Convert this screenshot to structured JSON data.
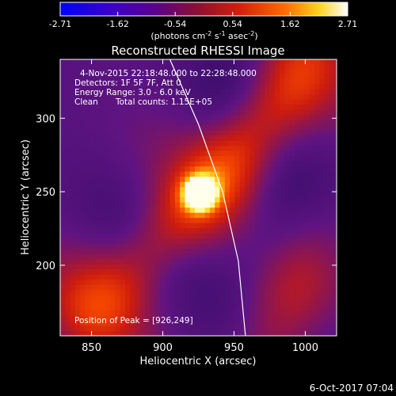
{
  "colorbar": {
    "ticks": [
      "-2.71",
      "-1.62",
      "-0.54",
      "0.54",
      "1.62",
      "2.71"
    ],
    "units_prefix": "(photons cm",
    "units_exp1": "-2",
    "units_mid": " s",
    "units_exp2": "-1",
    "units_mid2": " asec",
    "units_exp3": "-2",
    "units_suffix": ")",
    "range": [
      -2.71,
      2.71
    ]
  },
  "chart_data": {
    "type": "heatmap",
    "title": "Reconstructed RHESSI Image",
    "xlabel": "Heliocentric X (arcsec)",
    "ylabel": "Heliocentric Y (arcsec)",
    "x_ticks": [
      "850",
      "900",
      "950",
      "1000"
    ],
    "y_ticks": [
      "200",
      "250",
      "300"
    ],
    "xlim": [
      828,
      1022
    ],
    "ylim": [
      152,
      340
    ],
    "peak": [
      926,
      249
    ],
    "limb_curve": [
      [
        905,
        340
      ],
      [
        925,
        296
      ],
      [
        942,
        250
      ],
      [
        953,
        203
      ],
      [
        958,
        152
      ]
    ],
    "annotations": {
      "time_range": "4-Nov-2015 22:18:48.000 to 22:28:48.000",
      "detectors": "Detectors: 1F 5F 7F, Att 0",
      "energy": "Energy Range: 3.0 - 6.0 keV",
      "method": "Clean",
      "counts": "Total counts: 1.15E+05",
      "peak_label": "Position of Peak = [926,249]"
    }
  },
  "footer": {
    "timestamp": "6-Oct-2017 07:04"
  }
}
